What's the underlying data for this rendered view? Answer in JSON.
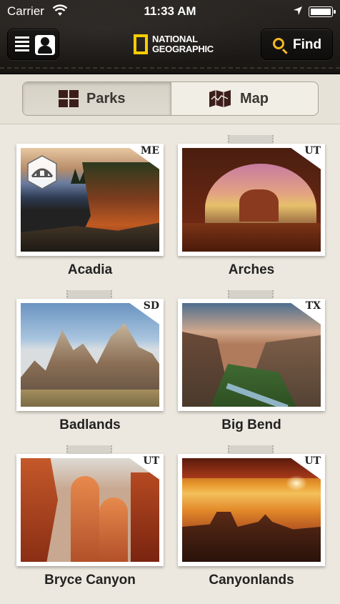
{
  "status_bar": {
    "carrier": "Carrier",
    "time": "11:33 AM"
  },
  "header": {
    "logo_text_line1": "NATIONAL",
    "logo_text_line2": "GEOGRAPHIC",
    "find_label": "Find"
  },
  "segment": {
    "parks_label": "Parks",
    "map_label": "Map",
    "selected": "Parks"
  },
  "parks": [
    {
      "name": "Acadia",
      "state": "ME"
    },
    {
      "name": "Arches",
      "state": "UT"
    },
    {
      "name": "Badlands",
      "state": "SD"
    },
    {
      "name": "Big Bend",
      "state": "TX"
    },
    {
      "name": "Bryce Canyon",
      "state": "UT"
    },
    {
      "name": "Canyonlands",
      "state": "UT"
    }
  ]
}
